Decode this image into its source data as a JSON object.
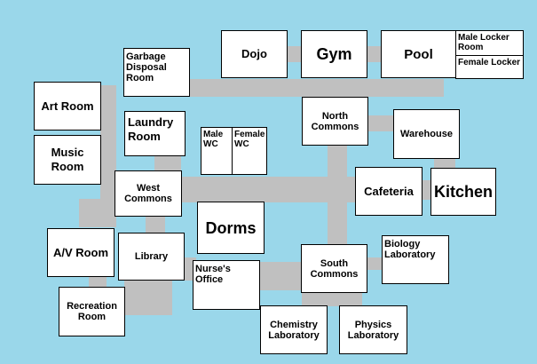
{
  "rooms": {
    "dojo": "Dojo",
    "gym": "Gym",
    "pool": "Pool",
    "male_locker": "Male Locker Room",
    "female_locker": "Female Locker",
    "garbage": "Garbage Disposal Room",
    "art_room": "Art Room",
    "laundry": "Laundry Room",
    "male_wc": "Male WC",
    "female_wc": "Female WC",
    "north_commons": "North Commons",
    "warehouse": "Warehouse",
    "music_room": "Music Room",
    "west_commons": "West Commons",
    "cafeteria": "Cafeteria",
    "kitchen": "Kitchen",
    "dorms": "Dorms",
    "av_room": "A/V Room",
    "library": "Library",
    "south_commons": "South Commons",
    "biology": "Biology Laboratory",
    "nurse": "Nurse's Office",
    "recreation": "Recreation Room",
    "chemistry": "Chemistry Laboratory",
    "physics": "Physics Laboratory"
  },
  "colors": {
    "background": "#9ad7ea",
    "corridor": "#c0c0c0",
    "room_fill": "#ffffff",
    "room_border": "#000000"
  }
}
